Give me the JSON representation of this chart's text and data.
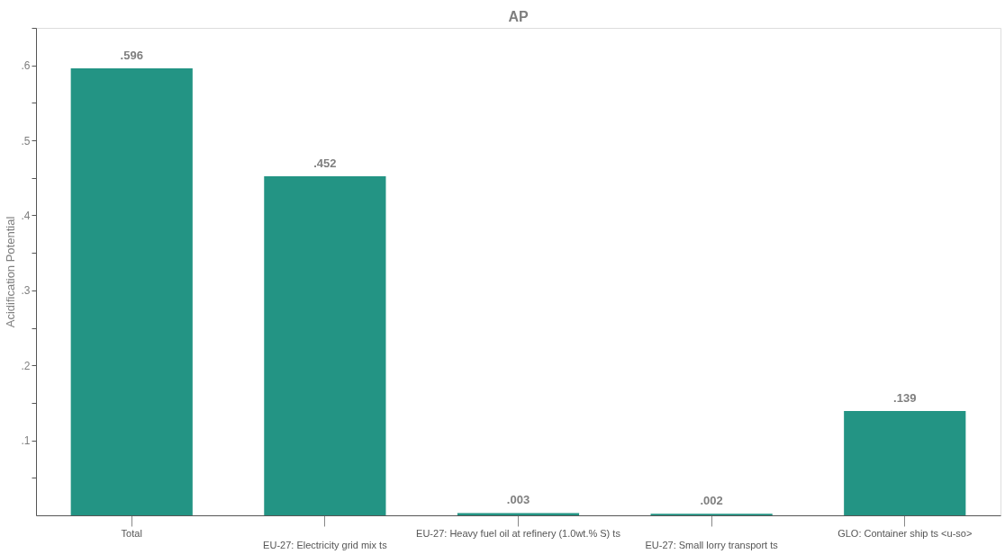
{
  "chart_data": {
    "type": "bar",
    "title": "AP",
    "ylabel": "Acidification Potential",
    "categories": [
      "Total",
      "EU-27: Electricity grid mix ts",
      "EU-27: Heavy fuel oil at refinery (1.0wt.% S) ts",
      "EU-27: Small lorry transport ts",
      "GLO: Container ship ts <u-so>"
    ],
    "values": [
      0.596,
      0.452,
      0.003,
      0.002,
      0.139
    ],
    "value_labels": [
      ".596",
      ".452",
      ".003",
      ".002",
      ".139"
    ],
    "color": "#239484",
    "ylim": [
      0,
      0.65
    ],
    "yticks": [
      {
        "value": 0.05,
        "label": null
      },
      {
        "value": 0.1,
        "label": ".1"
      },
      {
        "value": 0.15,
        "label": null
      },
      {
        "value": 0.2,
        "label": ".2"
      },
      {
        "value": 0.25,
        "label": null
      },
      {
        "value": 0.3,
        "label": ".3"
      },
      {
        "value": 0.35,
        "label": null
      },
      {
        "value": 0.4,
        "label": ".4"
      },
      {
        "value": 0.45,
        "label": null
      },
      {
        "value": 0.5,
        "label": ".5"
      },
      {
        "value": 0.55,
        "label": null
      },
      {
        "value": 0.6,
        "label": ".6"
      },
      {
        "value": 0.65,
        "label": null
      }
    ],
    "grid": false
  }
}
